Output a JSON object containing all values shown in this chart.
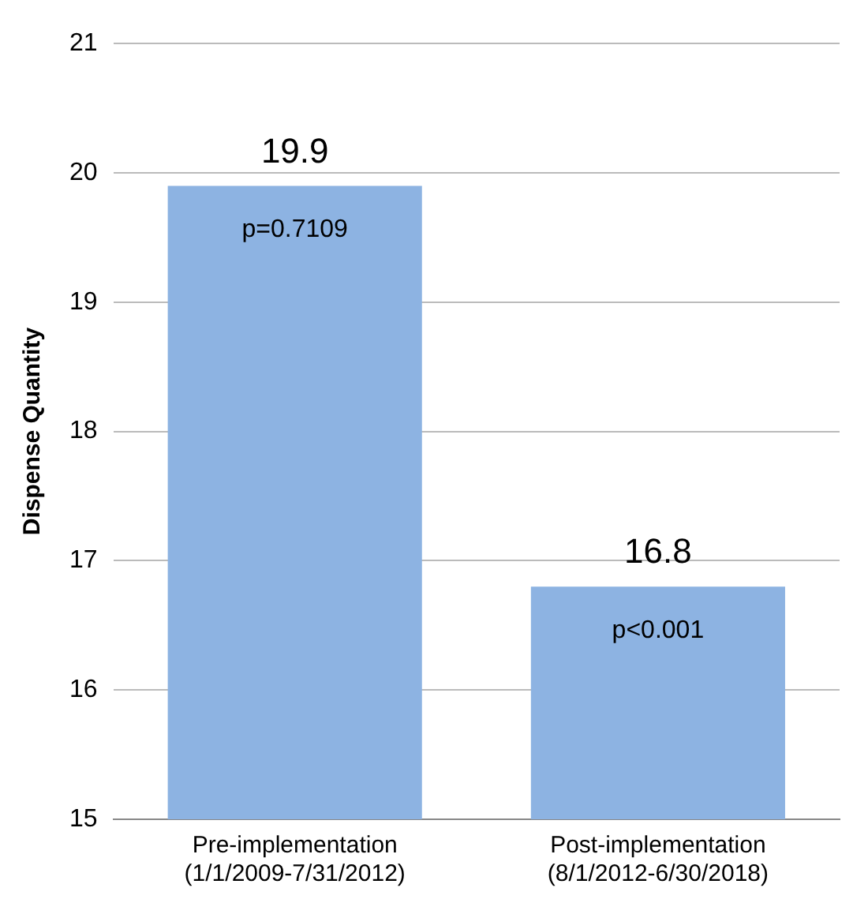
{
  "chart_data": {
    "type": "bar",
    "ylabel": "Dispense Quantity",
    "categories": [
      "Pre-implementation\n(1/1/2009-7/31/2012)",
      "Post-implementation\n(8/1/2012-6/30/2018)"
    ],
    "values": [
      19.9,
      16.8
    ],
    "color": "#8db3e2",
    "ylim": [
      15,
      21
    ],
    "yticks": [
      15,
      16,
      17,
      18,
      19,
      20,
      21
    ],
    "grid": "y",
    "legend": false,
    "data_labels": true,
    "annotations": [
      "p=0.7109",
      "p<0.001"
    ]
  }
}
